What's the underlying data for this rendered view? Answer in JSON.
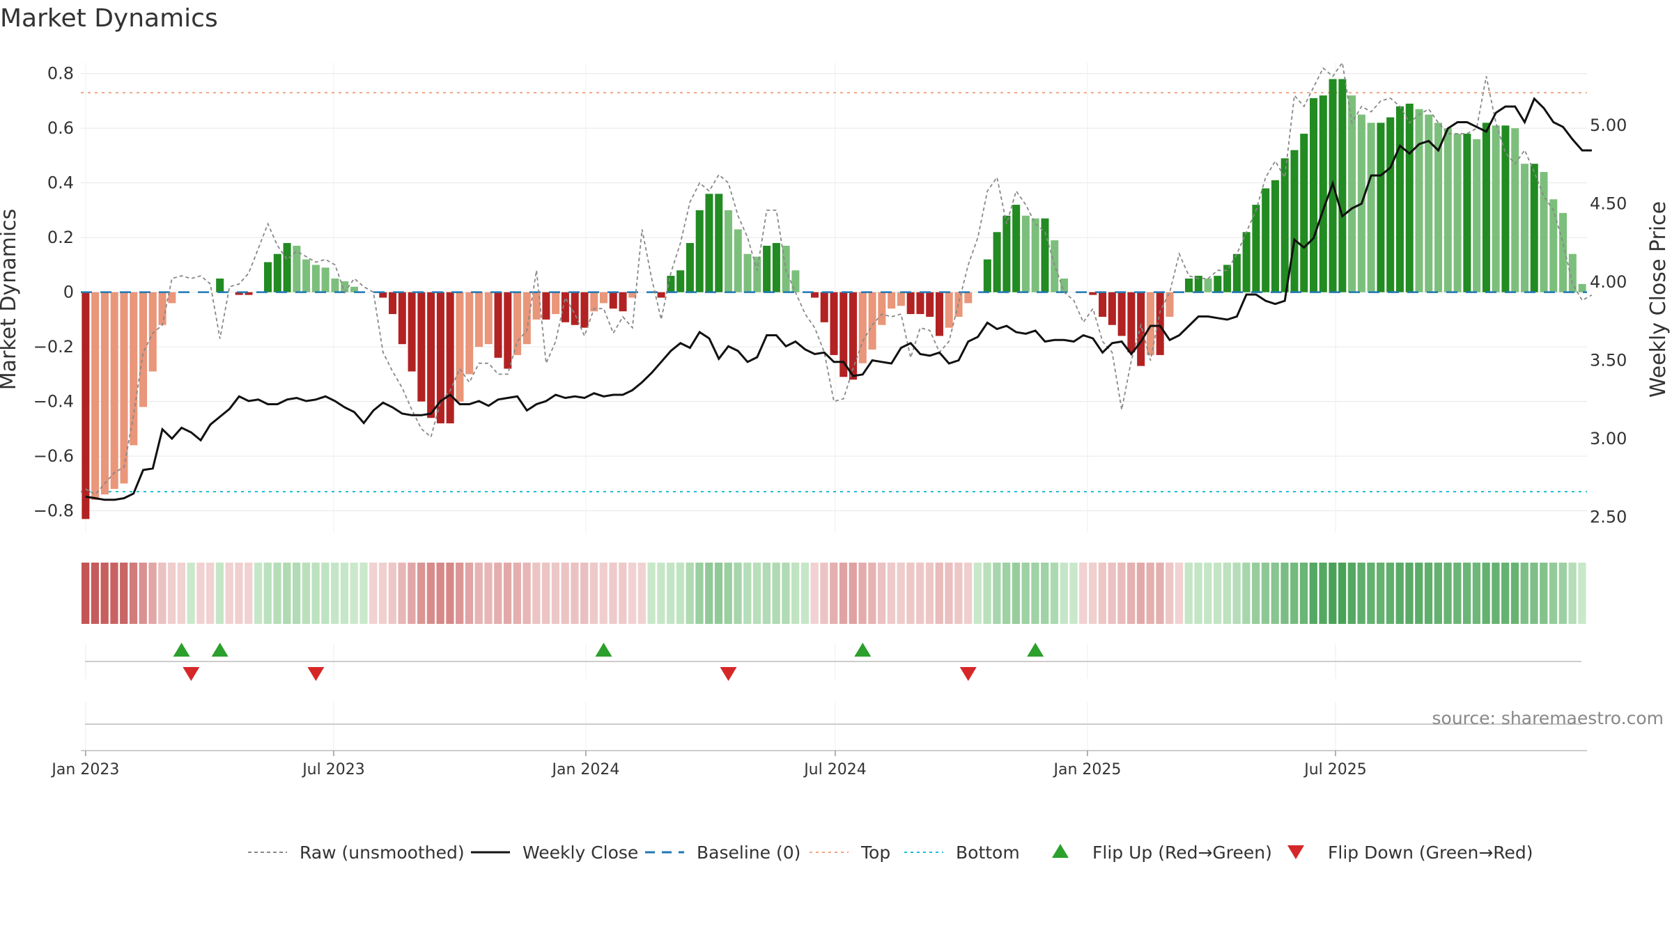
{
  "chart_data": {
    "type": "bar",
    "title": "Market Dynamics",
    "ylabel": "Market Dynamics",
    "y2label": "Weekly Close Price",
    "ylim": [
      -0.88,
      0.84
    ],
    "y2lim": [
      2.4,
      5.4
    ],
    "yticks": [
      "0.8",
      "0.6",
      "0.4",
      "0.2",
      "0",
      "−0.2",
      "−0.4",
      "−0.6",
      "−0.8"
    ],
    "y2ticks": [
      "5.00",
      "4.50",
      "4.00",
      "3.50",
      "3.00",
      "2.50"
    ],
    "xticks": [
      "Jan 2023",
      "Jul 2023",
      "Jan 2024",
      "Jul 2024",
      "Jan 2025",
      "Jul 2025"
    ],
    "x_start": "2023-01-01",
    "top_line": 0.73,
    "bottom_line": -0.73,
    "grid": true,
    "colors": {
      "dark_green": "#228B22",
      "light_green": "#7CBF7C",
      "dark_red": "#B22222",
      "light_red": "#E9967A",
      "close": "#111111",
      "raw": "#888888",
      "baseline": "#1F77B4",
      "top": "#F4A582",
      "bottom": "#17BECF",
      "flip_up": "#2CA02C",
      "flip_down": "#D62728"
    },
    "series": [
      {
        "name": "Market Dynamics",
        "values": [
          -0.83,
          -0.76,
          -0.74,
          -0.72,
          -0.7,
          -0.56,
          -0.42,
          -0.29,
          -0.12,
          -0.04,
          0.0,
          0.0,
          0.0,
          0.0,
          0.05,
          0.0,
          -0.01,
          -0.01,
          0.0,
          0.11,
          0.14,
          0.18,
          0.17,
          0.12,
          0.1,
          0.09,
          0.05,
          0.04,
          0.02,
          0.0,
          0.0,
          -0.02,
          -0.08,
          -0.19,
          -0.29,
          -0.4,
          -0.46,
          -0.48,
          -0.48,
          -0.4,
          -0.3,
          -0.2,
          -0.19,
          -0.24,
          -0.28,
          -0.23,
          -0.19,
          -0.1,
          -0.1,
          -0.08,
          -0.11,
          -0.12,
          -0.13,
          -0.07,
          -0.04,
          -0.06,
          -0.07,
          -0.02,
          0.0,
          0.0,
          -0.02,
          0.06,
          0.08,
          0.18,
          0.3,
          0.36,
          0.36,
          0.3,
          0.23,
          0.14,
          0.13,
          0.17,
          0.18,
          0.17,
          0.08,
          0.0,
          -0.02,
          -0.11,
          -0.23,
          -0.31,
          -0.32,
          -0.26,
          -0.21,
          -0.12,
          -0.06,
          -0.05,
          -0.08,
          -0.08,
          -0.09,
          -0.16,
          -0.13,
          -0.09,
          -0.04,
          0.0,
          0.12,
          0.22,
          0.28,
          0.32,
          0.28,
          0.27,
          0.27,
          0.19,
          0.05,
          0.0,
          0.0,
          -0.01,
          -0.09,
          -0.12,
          -0.16,
          -0.22,
          -0.27,
          -0.23,
          -0.23,
          -0.09,
          0.0,
          0.05,
          0.06,
          0.05,
          0.06,
          0.1,
          0.14,
          0.22,
          0.32,
          0.38,
          0.41,
          0.49,
          0.52,
          0.58,
          0.71,
          0.72,
          0.78,
          0.78,
          0.72,
          0.65,
          0.62,
          0.62,
          0.64,
          0.68,
          0.69,
          0.67,
          0.65,
          0.62,
          0.6,
          0.58,
          0.58,
          0.56,
          0.62,
          0.61,
          0.61,
          0.6,
          0.47,
          0.47,
          0.44,
          0.34,
          0.29,
          0.14,
          0.03
        ]
      },
      {
        "name": "Raw (unsmoothed)",
        "values": [
          -0.72,
          -0.74,
          -0.7,
          -0.66,
          -0.64,
          -0.45,
          -0.22,
          -0.15,
          -0.12,
          0.05,
          0.06,
          0.05,
          0.06,
          0.03,
          -0.17,
          0.02,
          0.03,
          0.07,
          0.16,
          0.25,
          0.17,
          0.12,
          0.15,
          0.13,
          0.11,
          0.12,
          0.1,
          0.0,
          0.05,
          0.02,
          0.0,
          -0.22,
          -0.29,
          -0.35,
          -0.43,
          -0.5,
          -0.53,
          -0.4,
          -0.36,
          -0.28,
          -0.33,
          -0.26,
          -0.26,
          -0.3,
          -0.3,
          -0.18,
          -0.14,
          0.08,
          -0.26,
          -0.18,
          -0.02,
          -0.08,
          -0.16,
          -0.06,
          -0.06,
          -0.15,
          -0.09,
          -0.13,
          0.23,
          0.05,
          -0.1,
          0.07,
          0.18,
          0.33,
          0.4,
          0.37,
          0.43,
          0.4,
          0.28,
          0.2,
          0.08,
          0.3,
          0.3,
          0.08,
          0.0,
          -0.08,
          -0.13,
          -0.22,
          -0.4,
          -0.39,
          -0.28,
          -0.18,
          -0.12,
          -0.08,
          -0.09,
          -0.08,
          -0.24,
          -0.13,
          -0.14,
          -0.22,
          -0.18,
          -0.04,
          0.1,
          0.2,
          0.37,
          0.42,
          0.25,
          0.37,
          0.32,
          0.25,
          0.22,
          0.1,
          0.0,
          -0.03,
          -0.11,
          -0.06,
          -0.18,
          -0.22,
          -0.43,
          -0.25,
          -0.12,
          -0.25,
          -0.07,
          0.0,
          0.14,
          0.06,
          0.05,
          0.05,
          0.08,
          0.08,
          0.14,
          0.22,
          0.3,
          0.42,
          0.48,
          0.42,
          0.72,
          0.68,
          0.75,
          0.82,
          0.79,
          0.84,
          0.62,
          0.68,
          0.66,
          0.7,
          0.71,
          0.68,
          0.62,
          0.65,
          0.67,
          0.62,
          0.58,
          0.58,
          0.58,
          0.6,
          0.79,
          0.62,
          0.51,
          0.47,
          0.52,
          0.44,
          0.35,
          0.3,
          0.18,
          0.03,
          -0.03,
          -0.01
        ]
      },
      {
        "name": "Weekly Close",
        "values": [
          2.63,
          2.62,
          2.61,
          2.61,
          2.62,
          2.65,
          2.8,
          2.81,
          3.06,
          3.0,
          3.07,
          3.04,
          2.99,
          3.09,
          3.14,
          3.19,
          3.27,
          3.24,
          3.25,
          3.22,
          3.22,
          3.25,
          3.26,
          3.24,
          3.25,
          3.27,
          3.24,
          3.2,
          3.17,
          3.1,
          3.18,
          3.23,
          3.2,
          3.16,
          3.15,
          3.15,
          3.16,
          3.24,
          3.28,
          3.22,
          3.22,
          3.24,
          3.21,
          3.25,
          3.26,
          3.27,
          3.18,
          3.22,
          3.24,
          3.28,
          3.26,
          3.27,
          3.26,
          3.29,
          3.27,
          3.28,
          3.28,
          3.31,
          3.36,
          3.42,
          3.49,
          3.56,
          3.61,
          3.58,
          3.68,
          3.64,
          3.51,
          3.59,
          3.56,
          3.49,
          3.52,
          3.66,
          3.66,
          3.59,
          3.62,
          3.57,
          3.54,
          3.55,
          3.49,
          3.49,
          3.4,
          3.41,
          3.5,
          3.49,
          3.48,
          3.58,
          3.61,
          3.54,
          3.53,
          3.55,
          3.48,
          3.5,
          3.62,
          3.65,
          3.74,
          3.7,
          3.72,
          3.68,
          3.67,
          3.69,
          3.62,
          3.63,
          3.63,
          3.62,
          3.66,
          3.64,
          3.55,
          3.61,
          3.62,
          3.54,
          3.62,
          3.72,
          3.72,
          3.63,
          3.66,
          3.72,
          3.78,
          3.78,
          3.77,
          3.76,
          3.78,
          3.92,
          3.92,
          3.88,
          3.86,
          3.88,
          4.27,
          4.22,
          4.28,
          4.46,
          4.63,
          4.42,
          4.47,
          4.5,
          4.68,
          4.68,
          4.73,
          4.87,
          4.82,
          4.88,
          4.9,
          4.84,
          4.98,
          5.02,
          5.02,
          4.99,
          4.96,
          5.08,
          5.12,
          5.12,
          5.02,
          5.17,
          5.11,
          5.02,
          4.99,
          4.91,
          4.84,
          4.84
        ]
      }
    ],
    "heat_strip": [
      -0.83,
      -0.76,
      -0.74,
      -0.72,
      -0.7,
      -0.56,
      -0.42,
      -0.29,
      -0.12,
      -0.04,
      -0.02,
      0.02,
      -0.02,
      -0.02,
      0.05,
      -0.02,
      -0.03,
      -0.02,
      0.04,
      0.11,
      0.14,
      0.18,
      0.17,
      0.12,
      0.1,
      0.09,
      0.05,
      0.04,
      0.02,
      0.02,
      -0.02,
      -0.03,
      -0.08,
      -0.19,
      -0.29,
      -0.4,
      -0.46,
      -0.48,
      -0.48,
      -0.4,
      -0.3,
      -0.2,
      -0.19,
      -0.24,
      -0.28,
      -0.23,
      -0.19,
      -0.1,
      -0.1,
      -0.08,
      -0.11,
      -0.12,
      -0.13,
      -0.07,
      -0.04,
      -0.06,
      -0.07,
      -0.02,
      -0.02,
      0.03,
      0.04,
      0.06,
      0.08,
      0.18,
      0.3,
      0.36,
      0.36,
      0.3,
      0.23,
      0.14,
      0.13,
      0.17,
      0.18,
      0.17,
      0.08,
      0.04,
      -0.02,
      -0.11,
      -0.23,
      -0.31,
      -0.32,
      -0.26,
      -0.21,
      -0.12,
      -0.06,
      -0.05,
      -0.08,
      -0.08,
      -0.09,
      -0.16,
      -0.13,
      -0.09,
      -0.04,
      0.03,
      0.12,
      0.22,
      0.28,
      0.32,
      0.28,
      0.27,
      0.27,
      0.19,
      0.05,
      0.03,
      -0.02,
      -0.03,
      -0.09,
      -0.12,
      -0.16,
      -0.22,
      -0.27,
      -0.23,
      -0.23,
      -0.09,
      -0.02,
      0.05,
      0.06,
      0.05,
      0.06,
      0.1,
      0.14,
      0.22,
      0.32,
      0.38,
      0.41,
      0.49,
      0.52,
      0.58,
      0.71,
      0.72,
      0.78,
      0.78,
      0.72,
      0.65,
      0.62,
      0.62,
      0.64,
      0.68,
      0.69,
      0.67,
      0.65,
      0.62,
      0.6,
      0.58,
      0.58,
      0.56,
      0.62,
      0.61,
      0.61,
      0.6,
      0.47,
      0.47,
      0.44,
      0.34,
      0.29,
      0.14,
      0.03
    ],
    "flips": {
      "up": [
        10,
        14,
        54,
        81,
        99
      ],
      "down": [
        11,
        24,
        67,
        92
      ]
    },
    "legend": [
      {
        "key": "raw",
        "label": "Raw (unsmoothed)"
      },
      {
        "key": "close",
        "label": "Weekly Close"
      },
      {
        "key": "baseline",
        "label": "Baseline (0)"
      },
      {
        "key": "top",
        "label": "Top"
      },
      {
        "key": "bottom",
        "label": "Bottom"
      },
      {
        "key": "flip_up",
        "label": "Flip Up (Red→Green)"
      },
      {
        "key": "flip_down",
        "label": "Flip Down (Green→Red)"
      }
    ],
    "source": "source: sharemaestro.com"
  }
}
